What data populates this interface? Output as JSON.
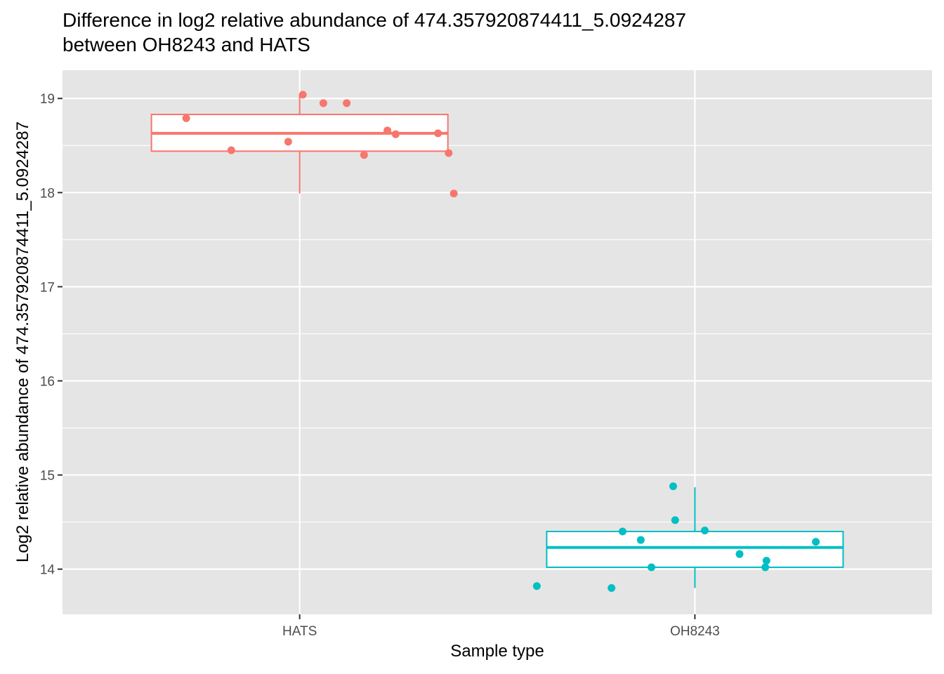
{
  "chart_data": {
    "type": "boxplot",
    "title_lines": [
      "Difference in log2 relative abundance of 474.357920874411_5.0924287",
      "between OH8243 and HATS"
    ],
    "xlabel": "Sample type",
    "ylabel": "Log2 relative abundance of 474.357920874411_5.0924287",
    "categories": [
      "HATS",
      "OH8243"
    ],
    "ylim": [
      13.52,
      19.3
    ],
    "yticks": [
      14,
      15,
      16,
      17,
      18,
      19
    ],
    "panel_background": "#e5e5e5",
    "grid": true,
    "groups": [
      {
        "name": "HATS",
        "color": "#f8766d",
        "box": {
          "whisker_low": 17.99,
          "q1": 18.44,
          "median": 18.63,
          "q3": 18.83,
          "whisker_high": 19.04
        },
        "points": [
          {
            "jitter": -0.287,
            "value": 18.79
          },
          {
            "jitter": -0.173,
            "value": 18.45
          },
          {
            "jitter": -0.029,
            "value": 18.54
          },
          {
            "jitter": 0.008,
            "value": 19.04
          },
          {
            "jitter": 0.06,
            "value": 18.95
          },
          {
            "jitter": 0.119,
            "value": 18.95
          },
          {
            "jitter": 0.163,
            "value": 18.4
          },
          {
            "jitter": 0.222,
            "value": 18.66
          },
          {
            "jitter": 0.243,
            "value": 18.62
          },
          {
            "jitter": 0.35,
            "value": 18.63
          },
          {
            "jitter": 0.377,
            "value": 18.42
          },
          {
            "jitter": 0.39,
            "value": 17.99
          }
        ]
      },
      {
        "name": "OH8243",
        "color": "#00bfc4",
        "box": {
          "whisker_low": 13.8,
          "q1": 14.02,
          "median": 14.23,
          "q3": 14.4,
          "whisker_high": 14.87
        },
        "points": [
          {
            "jitter": -0.4,
            "value": 13.82
          },
          {
            "jitter": -0.211,
            "value": 13.8
          },
          {
            "jitter": -0.183,
            "value": 14.4
          },
          {
            "jitter": -0.137,
            "value": 14.31
          },
          {
            "jitter": -0.11,
            "value": 14.02
          },
          {
            "jitter": -0.055,
            "value": 14.88
          },
          {
            "jitter": -0.05,
            "value": 14.52
          },
          {
            "jitter": 0.025,
            "value": 14.41
          },
          {
            "jitter": 0.113,
            "value": 14.16
          },
          {
            "jitter": 0.178,
            "value": 14.02
          },
          {
            "jitter": 0.181,
            "value": 14.09
          },
          {
            "jitter": 0.306,
            "value": 14.29
          }
        ]
      }
    ]
  }
}
